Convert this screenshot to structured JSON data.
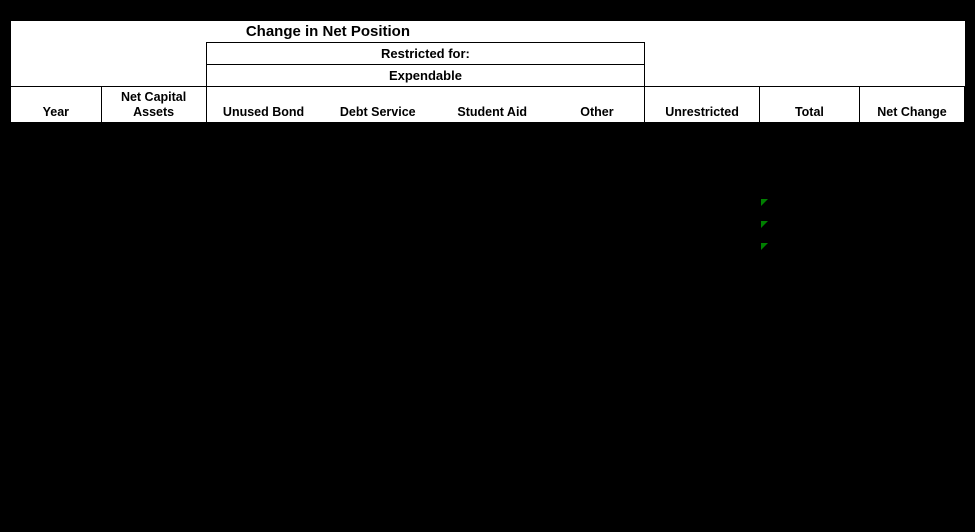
{
  "table": {
    "type": "table",
    "background_color": "#000000",
    "header_bg": "#ffffff",
    "header_text_color": "#000000",
    "border_color": "#000000",
    "flag_color": "#008000",
    "title": "Change in Net Position",
    "subtitle1": "Restricted for:",
    "subtitle2": "Expendable",
    "columns": {
      "year": "Year",
      "net_capital_assets": "Net Capital Assets",
      "unused_bond": "Unused Bond",
      "debt_service": "Debt Service",
      "student_aid": "Student Aid",
      "other": "Other",
      "unrestricted": "Unrestricted",
      "total": "Total",
      "net_change": "Net Change"
    },
    "rows": [
      {
        "year": "",
        "net_capital_assets": "",
        "unused_bond": "",
        "debt_service": "",
        "student_aid": "",
        "other": "",
        "unrestricted": "",
        "total": "",
        "net_change": "",
        "total_flag": false
      },
      {
        "year": "",
        "net_capital_assets": "",
        "unused_bond": "",
        "debt_service": "",
        "student_aid": "",
        "other": "",
        "unrestricted": "",
        "total": "",
        "net_change": "",
        "total_flag": false
      },
      {
        "year": "",
        "net_capital_assets": "",
        "unused_bond": "",
        "debt_service": "",
        "student_aid": "",
        "other": "",
        "unrestricted": "",
        "total": "",
        "net_change": "",
        "total_flag": false
      },
      {
        "year": "",
        "net_capital_assets": "",
        "unused_bond": "",
        "debt_service": "",
        "student_aid": "",
        "other": "",
        "unrestricted": "",
        "total": "",
        "net_change": "",
        "total_flag": true
      },
      {
        "year": "",
        "net_capital_assets": "",
        "unused_bond": "",
        "debt_service": "",
        "student_aid": "",
        "other": "",
        "unrestricted": "",
        "total": "",
        "net_change": "",
        "total_flag": true
      },
      {
        "year": "",
        "net_capital_assets": "",
        "unused_bond": "",
        "debt_service": "",
        "student_aid": "",
        "other": "",
        "unrestricted": "",
        "total": "",
        "net_change": "",
        "total_flag": true
      },
      {
        "year": "",
        "net_capital_assets": "",
        "unused_bond": "",
        "debt_service": "",
        "student_aid": "",
        "other": "",
        "unrestricted": "",
        "total": "",
        "net_change": "",
        "total_flag": false
      },
      {
        "year": "",
        "net_capital_assets": "",
        "unused_bond": "",
        "debt_service": "",
        "student_aid": "",
        "other": "",
        "unrestricted": "",
        "total": "",
        "net_change": "",
        "total_flag": false
      },
      {
        "year": "",
        "net_capital_assets": "",
        "unused_bond": "",
        "debt_service": "",
        "student_aid": "",
        "other": "",
        "unrestricted": "",
        "total": "",
        "net_change": "",
        "total_flag": false
      },
      {
        "year": "",
        "net_capital_assets": "",
        "unused_bond": "",
        "debt_service": "",
        "student_aid": "",
        "other": "",
        "unrestricted": "",
        "total": "",
        "net_change": "",
        "total_flag": false
      }
    ],
    "col_widths_pct": [
      9.5,
      11,
      12,
      12,
      12,
      10,
      12,
      10.5,
      11
    ]
  }
}
